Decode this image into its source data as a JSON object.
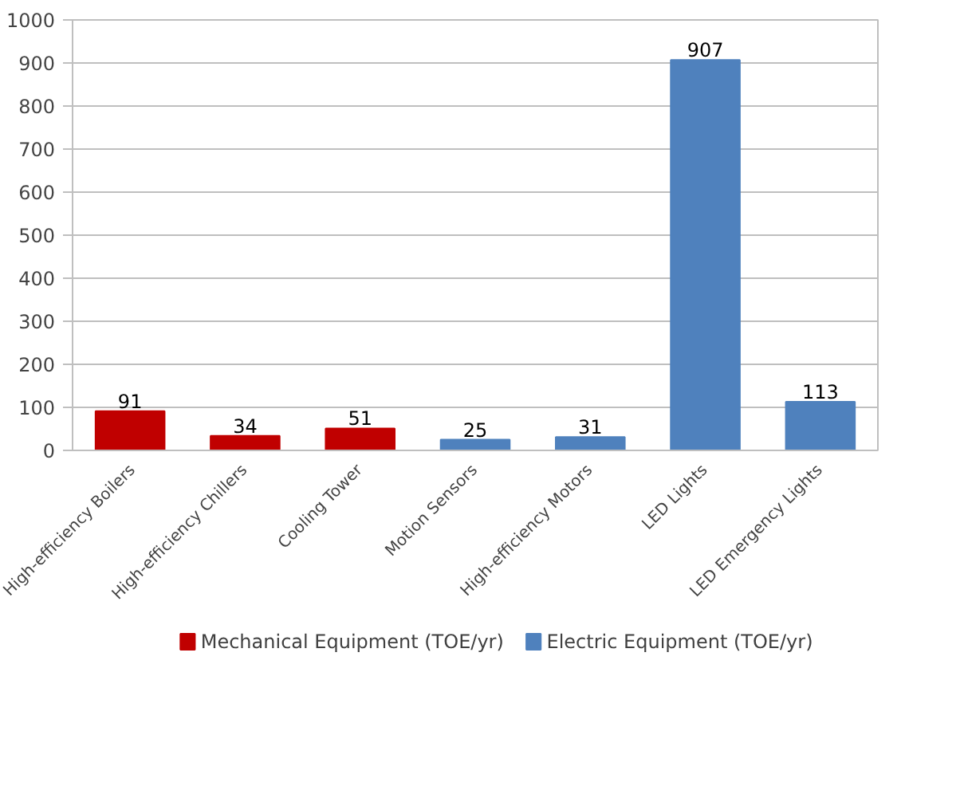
{
  "chart_data": {
    "type": "bar",
    "stacked": true,
    "categories": [
      "High-efficiency Boilers",
      "High-efficiency Chillers",
      "Cooling Tower",
      "Motion Sensors",
      "High-efficiency Motors",
      "LED Lights",
      "LED Emergency Lights"
    ],
    "series": [
      {
        "name": "Mechanical Equipment (TOE/yr)",
        "color": "#c00000",
        "values": [
          91,
          34,
          51,
          null,
          null,
          null,
          null
        ]
      },
      {
        "name": "Electric Equipment (TOE/yr)",
        "color": "#4f81bd",
        "values": [
          null,
          null,
          null,
          25,
          31,
          907,
          113
        ]
      }
    ],
    "ylim": [
      0,
      1000
    ],
    "yticks": [
      0,
      100,
      200,
      300,
      400,
      500,
      600,
      700,
      800,
      900,
      1000
    ],
    "grid": "y",
    "legend": "bottom",
    "data_labels": true
  }
}
